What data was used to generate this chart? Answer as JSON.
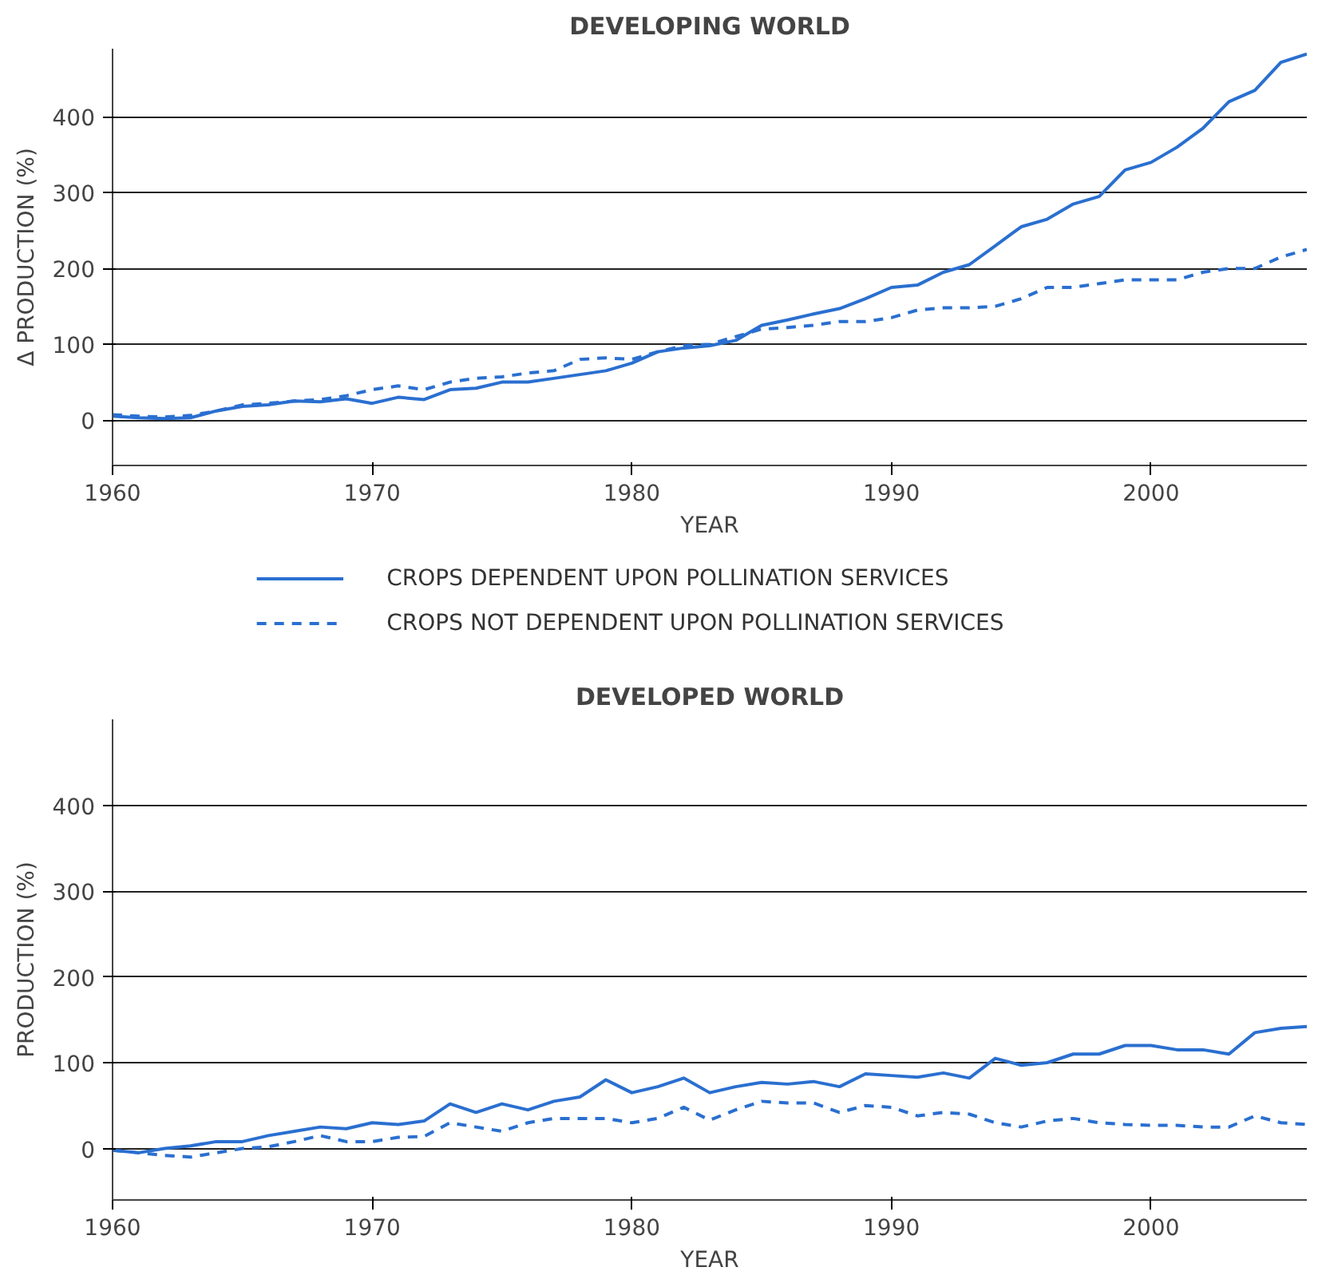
{
  "chart_data": [
    {
      "type": "line",
      "title": "DEVELOPING WORLD",
      "xlabel": "YEAR",
      "ylabel": "Δ PRODUCTION (%)",
      "x": [
        1960,
        1961,
        1962,
        1963,
        1964,
        1965,
        1966,
        1967,
        1968,
        1969,
        1970,
        1971,
        1972,
        1973,
        1974,
        1975,
        1976,
        1977,
        1978,
        1979,
        1980,
        1981,
        1982,
        1983,
        1984,
        1985,
        1986,
        1987,
        1988,
        1989,
        1990,
        1991,
        1992,
        1993,
        1994,
        1995,
        1996,
        1997,
        1998,
        1999,
        2000,
        2001,
        2002,
        2003,
        2004,
        2005,
        2006
      ],
      "xlim": [
        1960,
        2006
      ],
      "xticks": [
        1960,
        1970,
        1980,
        1990,
        2000
      ],
      "ylim": [
        -60,
        490
      ],
      "yticks": [
        0,
        100,
        200,
        300,
        400
      ],
      "grid": "y",
      "legend": "bottom",
      "series": [
        {
          "name": "CROPS DEPENDENT UPON POLLINATION SERVICES",
          "color": "#2a6fd0",
          "line_style": "solid",
          "values": [
            5,
            3,
            2,
            3,
            12,
            18,
            20,
            25,
            24,
            28,
            22,
            30,
            27,
            40,
            42,
            50,
            50,
            55,
            60,
            65,
            75,
            90,
            95,
            98,
            105,
            125,
            132,
            140,
            147,
            160,
            175,
            178,
            195,
            205,
            230,
            255,
            265,
            285,
            295,
            330,
            340,
            360,
            385,
            420,
            435,
            472,
            483
          ]
        },
        {
          "name": "CROPS NOT DEPENDENT UPON POLLINATION SERVICES",
          "color": "#2a6fd0",
          "line_style": "dashed",
          "values": [
            7,
            5,
            4,
            6,
            12,
            20,
            22,
            25,
            27,
            32,
            40,
            45,
            40,
            50,
            55,
            57,
            62,
            65,
            80,
            82,
            80,
            90,
            98,
            100,
            110,
            120,
            122,
            125,
            130,
            130,
            135,
            145,
            148,
            148,
            150,
            160,
            175,
            175,
            180,
            185,
            185,
            185,
            195,
            200,
            200,
            215,
            225
          ]
        }
      ]
    },
    {
      "type": "line",
      "title": "DEVELOPED WORLD",
      "xlabel": "YEAR",
      "ylabel": "PRODUCTION (%)",
      "x": [
        1960,
        1961,
        1962,
        1963,
        1964,
        1965,
        1966,
        1967,
        1968,
        1969,
        1970,
        1971,
        1972,
        1973,
        1974,
        1975,
        1976,
        1977,
        1978,
        1979,
        1980,
        1981,
        1982,
        1983,
        1984,
        1985,
        1986,
        1987,
        1988,
        1989,
        1990,
        1991,
        1992,
        1993,
        1994,
        1995,
        1996,
        1997,
        1998,
        1999,
        2000,
        2001,
        2002,
        2003,
        2004,
        2005,
        2006
      ],
      "xlim": [
        1960,
        2006
      ],
      "xticks": [
        1960,
        1970,
        1980,
        1990,
        2000
      ],
      "ylim": [
        -60,
        500
      ],
      "yticks": [
        0,
        100,
        200,
        300,
        400
      ],
      "grid": "y",
      "series": [
        {
          "color": "#2a6fd0",
          "line_style": "solid",
          "values": [
            -2,
            -5,
            0,
            3,
            8,
            8,
            15,
            20,
            25,
            23,
            30,
            28,
            32,
            52,
            42,
            52,
            45,
            55,
            60,
            80,
            65,
            72,
            82,
            65,
            72,
            77,
            75,
            78,
            72,
            87,
            85,
            83,
            88,
            82,
            105,
            97,
            100,
            110,
            110,
            120,
            120,
            115,
            115,
            110,
            135,
            140,
            142
          ]
        },
        {
          "color": "#2a6fd0",
          "line_style": "dashed",
          "values": [
            -2,
            -5,
            -8,
            -10,
            -5,
            0,
            2,
            8,
            15,
            8,
            8,
            13,
            14,
            30,
            25,
            20,
            30,
            35,
            35,
            35,
            30,
            35,
            48,
            33,
            45,
            55,
            53,
            53,
            42,
            50,
            48,
            38,
            42,
            40,
            30,
            25,
            32,
            35,
            30,
            28,
            27,
            27,
            25,
            25,
            38,
            30,
            28
          ]
        }
      ]
    }
  ]
}
